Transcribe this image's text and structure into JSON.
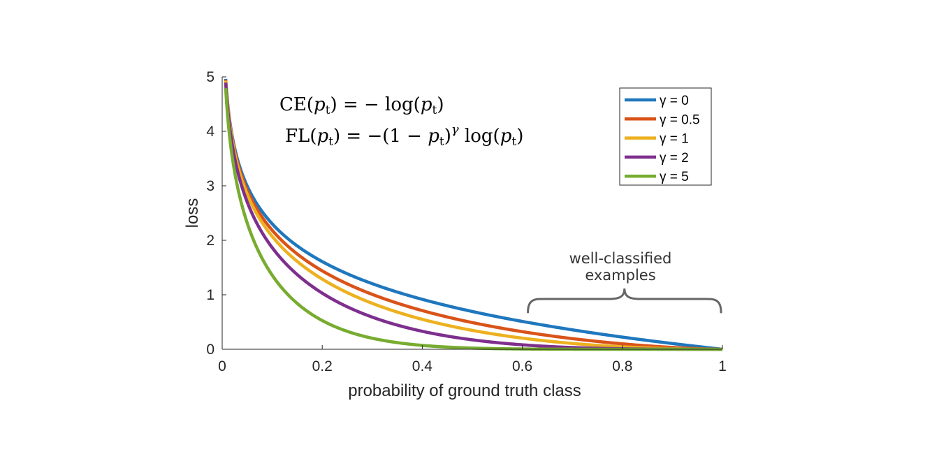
{
  "chart_data": {
    "type": "line",
    "title": "",
    "xlabel": "probability of ground truth class",
    "ylabel": "loss",
    "xlim": [
      0,
      1
    ],
    "ylim": [
      0,
      5
    ],
    "xticks": [
      0,
      0.2,
      0.4,
      0.6,
      0.8,
      1
    ],
    "xtick_labels": [
      "0",
      "0.2",
      "0.4",
      "0.6",
      "0.8",
      "1"
    ],
    "yticks": [
      0,
      1,
      2,
      3,
      4,
      5
    ],
    "ytick_labels": [
      "0",
      "1",
      "2",
      "3",
      "4",
      "5"
    ],
    "grid": false,
    "formula": "FL(p_t) = -(1 - p_t)^γ log(p_t)",
    "series": [
      {
        "name": "γ = 0",
        "gamma": 0,
        "color": "#1f77bd"
      },
      {
        "name": "γ = 0.5",
        "gamma": 0.5,
        "color": "#d95319"
      },
      {
        "name": "γ = 1",
        "gamma": 1,
        "color": "#edb120"
      },
      {
        "name": "γ = 2",
        "gamma": 2,
        "color": "#7e2f8e"
      },
      {
        "name": "γ = 5",
        "gamma": 5,
        "color": "#77ac30"
      }
    ],
    "legend_position": "top-right",
    "annotations": {
      "ce_formula": {
        "lhs": "CE",
        "arg": "p",
        "sub": "t",
        "rhs": "= − log("
      },
      "fl_formula": {
        "lhs": "FL",
        "arg": "p",
        "sub": "t",
        "mid": "= −(1 − ",
        "gamma": "γ",
        "tail": " log("
      },
      "bracket_label_line1": "well-classified",
      "bracket_label_line2": "examples",
      "bracket_range": [
        0.6,
        1
      ]
    }
  }
}
